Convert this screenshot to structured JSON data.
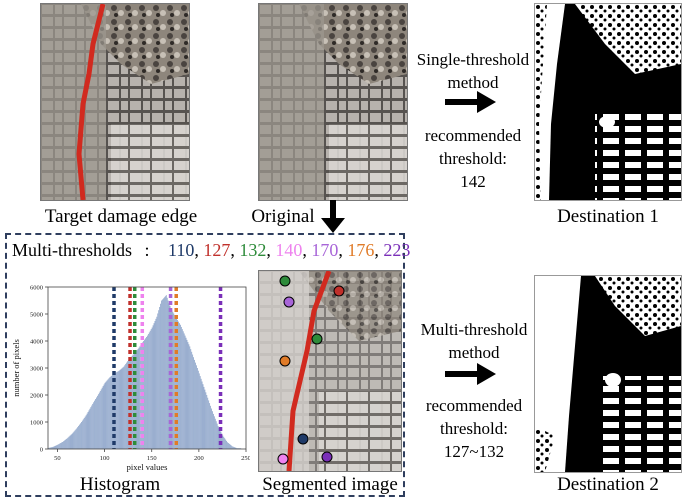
{
  "top": {
    "caption_left": "Target damage edge",
    "caption_mid": "Original",
    "caption_right": "Destination 1",
    "method": {
      "line1": "Single-threshold",
      "line2": "method",
      "line3": "recommended",
      "line4": "threshold:",
      "line5": "142"
    }
  },
  "bottom": {
    "multi_label": "Multi-thresholds",
    "colon": ":",
    "thresholds": [
      {
        "value": "110",
        "color": "#1f3a68"
      },
      {
        "value": "127",
        "color": "#c0302b"
      },
      {
        "value": "132",
        "color": "#2e8b3a"
      },
      {
        "value": "140",
        "color": "#ee82ee"
      },
      {
        "value": "170",
        "color": "#a865d8"
      },
      {
        "value": "176",
        "color": "#e07b28"
      },
      {
        "value": "223",
        "color": "#7a2fb8"
      }
    ],
    "caption_hist": "Histogram",
    "caption_seg": "Segmented image",
    "caption_right": "Destination 2",
    "method": {
      "line1": "Multi-threshold",
      "line2": "method",
      "line3": "recommended",
      "line4": "threshold:",
      "line5": "127~132"
    }
  },
  "chart_data": {
    "type": "bar",
    "xlabel": "pixel values",
    "ylabel": "number of pixels",
    "xlim": [
      40,
      250
    ],
    "ylim": [
      0,
      6000
    ],
    "xticks": [
      50,
      100,
      150,
      200,
      250
    ],
    "yticks": [
      0,
      1000,
      2000,
      3000,
      4000,
      5000,
      6000
    ],
    "bar_color": "#8aa2c8",
    "x": [
      40,
      45,
      50,
      55,
      60,
      65,
      70,
      75,
      80,
      85,
      90,
      95,
      100,
      105,
      110,
      115,
      120,
      125,
      130,
      135,
      140,
      145,
      150,
      155,
      160,
      165,
      170,
      175,
      180,
      185,
      190,
      195,
      200,
      205,
      210,
      215,
      220,
      225,
      230,
      235,
      240
    ],
    "values": [
      40,
      80,
      160,
      260,
      400,
      560,
      760,
      1000,
      1250,
      1550,
      1850,
      2150,
      2450,
      2650,
      2800,
      2900,
      3050,
      3300,
      3500,
      3700,
      3950,
      4200,
      4500,
      4900,
      5500,
      5700,
      5200,
      4900,
      4600,
      4200,
      3800,
      3300,
      2800,
      2300,
      1800,
      1300,
      850,
      500,
      250,
      100,
      30
    ],
    "threshold_lines": [
      110,
      127,
      132,
      140,
      170,
      176,
      223
    ]
  }
}
